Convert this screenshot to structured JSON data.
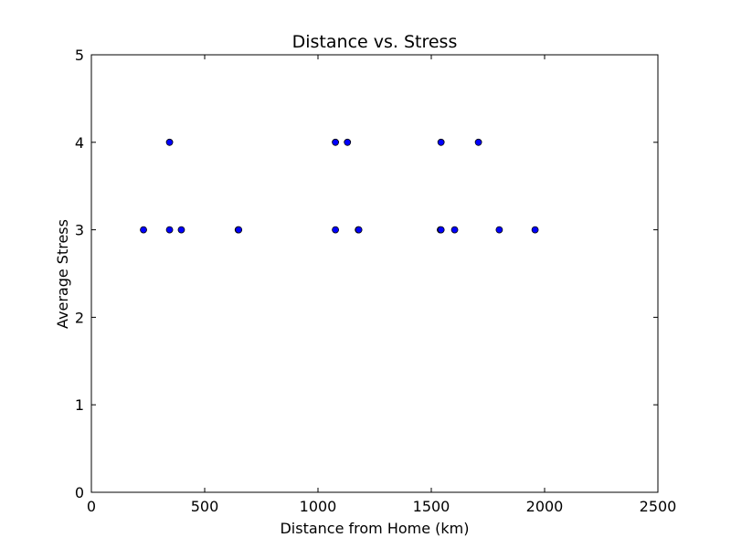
{
  "chart_data": {
    "type": "scatter",
    "title": "Distance vs. Stress",
    "xlabel": "Distance from Home (km)",
    "ylabel": "Average Stress",
    "xlim": [
      0,
      2500
    ],
    "ylim": [
      0,
      5
    ],
    "xticks": [
      0,
      500,
      1000,
      1500,
      2000,
      2500
    ],
    "yticks": [
      0,
      1,
      2,
      3,
      4,
      5
    ],
    "grid": false,
    "marker_color": "#0000ff",
    "marker_edge_color": "#000000",
    "points": [
      {
        "x": 230,
        "y": 3
      },
      {
        "x": 345,
        "y": 3
      },
      {
        "x": 345,
        "y": 4
      },
      {
        "x": 397,
        "y": 3
      },
      {
        "x": 648,
        "y": 3
      },
      {
        "x": 650,
        "y": 3
      },
      {
        "x": 1077,
        "y": 3
      },
      {
        "x": 1077,
        "y": 4
      },
      {
        "x": 1130,
        "y": 4
      },
      {
        "x": 1178,
        "y": 3
      },
      {
        "x": 1180,
        "y": 3
      },
      {
        "x": 1540,
        "y": 3
      },
      {
        "x": 1543,
        "y": 3
      },
      {
        "x": 1543,
        "y": 4
      },
      {
        "x": 1603,
        "y": 3
      },
      {
        "x": 1708,
        "y": 4
      },
      {
        "x": 1800,
        "y": 3
      },
      {
        "x": 1958,
        "y": 3
      }
    ]
  }
}
